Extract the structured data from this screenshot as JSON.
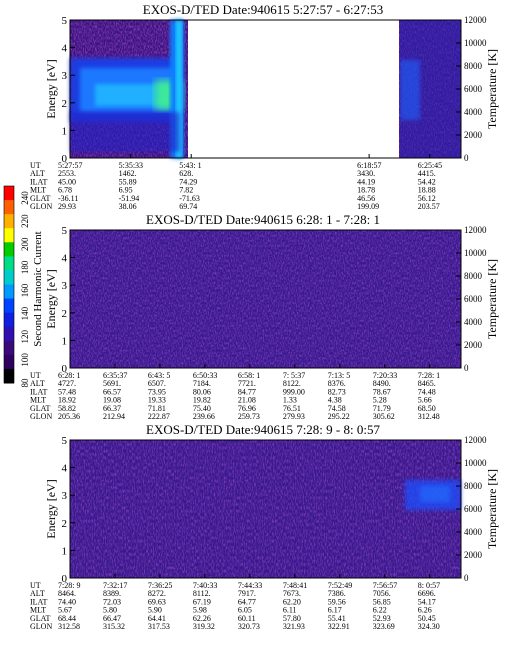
{
  "colorbar": {
    "label": "Second Harmonic Current",
    "ticks": [
      "240",
      "220",
      "200",
      "180",
      "160",
      "140",
      "120",
      "100",
      "80"
    ],
    "colors": [
      "#ff0000",
      "#ff6000",
      "#ffb000",
      "#ffff00",
      "#00cc00",
      "#00dd88",
      "#00cccc",
      "#0099ff",
      "#0044ff",
      "#1020e0",
      "#3010b0",
      "#3a0a7a",
      "#300060",
      "#000000"
    ]
  },
  "chart_data": [
    {
      "type": "heatmap",
      "title": "EXOS-D/TED   Date:940615  5:27:57 - 6:27:53",
      "ylabel": "Energy [eV]",
      "ylabel_right": "Temperature [K]",
      "ylim": [
        0,
        5
      ],
      "ylim_right": [
        0,
        12000
      ],
      "yticks": [
        "0",
        "1",
        "2",
        "3",
        "4",
        "5"
      ],
      "yticks_right": [
        "0",
        "2000",
        "4000",
        "6000",
        "8000",
        "10000",
        "12000"
      ],
      "data_gap": [
        0.455,
        0.865
      ],
      "ephemeris": {
        "row_labels": [
          "UT",
          "ALT",
          "ILAT",
          "MLT",
          "GLAT",
          "GLON"
        ],
        "columns": [
          {
            "pos": 0.0,
            "values": [
              "5:27:57",
              "2553.",
              "45.00",
              "6.78",
              "-36.11",
              "29.93"
            ]
          },
          {
            "pos": 0.155,
            "values": [
              "5:35:33",
              "1462.",
              "55.89",
              "6.95",
              "-51.94",
              "38.06"
            ]
          },
          {
            "pos": 0.31,
            "values": [
              "5:43: 1",
              "628.",
              "74.29",
              "7.82",
              "-71.63",
              "69.74"
            ]
          },
          {
            "pos": 0.765,
            "values": [
              "6:18:57",
              "3430.",
              "44.19",
              "18.78",
              "46.56",
              "199.09"
            ]
          },
          {
            "pos": 0.92,
            "values": [
              "6:25:45",
              "4415.",
              "54.42",
              "18.88",
              "56.12",
              "203.57"
            ]
          }
        ]
      }
    },
    {
      "type": "heatmap",
      "title": "EXOS-D/TED   Date:940615  6:28: 1 - 7:28: 1",
      "ylabel": "Energy [eV]",
      "ylabel_right": "Temperature [K]",
      "ylim": [
        0,
        5
      ],
      "ylim_right": [
        0,
        12000
      ],
      "yticks": [
        "0",
        "1",
        "2",
        "3",
        "4",
        "5"
      ],
      "yticks_right": [
        "0",
        "2000",
        "4000",
        "6000",
        "8000",
        "10000",
        "12000"
      ],
      "ephemeris": {
        "row_labels": [
          "UT",
          "ALT",
          "ILAT",
          "MLT",
          "GLAT",
          "GLON"
        ],
        "columns": [
          {
            "pos": 0.0,
            "values": [
              "6:28: 1",
              "4727.",
              "57.48",
              "18.92",
              "58.82",
              "205.36"
            ]
          },
          {
            "pos": 0.115,
            "values": [
              "6:35:37",
              "5691.",
              "66.57",
              "19.08",
              "66.37",
              "212.94"
            ]
          },
          {
            "pos": 0.23,
            "values": [
              "6:43: 5",
              "6507.",
              "73.95",
              "19.33",
              "71.81",
              "222.87"
            ]
          },
          {
            "pos": 0.345,
            "values": [
              "6:50:33",
              "7184.",
              "80.06",
              "19.82",
              "75.40",
              "239.66"
            ]
          },
          {
            "pos": 0.46,
            "values": [
              "6:58: 1",
              "7721.",
              "84.77",
              "21.08",
              "76.96",
              "259.73"
            ]
          },
          {
            "pos": 0.575,
            "values": [
              "7: 5:37",
              "8122.",
              "999.00",
              "1.33",
              "76.51",
              "279.93"
            ]
          },
          {
            "pos": 0.69,
            "values": [
              "7:13: 5",
              "8376.",
              "82.73",
              "4.38",
              "74.58",
              "295.22"
            ]
          },
          {
            "pos": 0.805,
            "values": [
              "7:20:33",
              "8490.",
              "78.67",
              "5.28",
              "71.79",
              "305.62"
            ]
          },
          {
            "pos": 0.92,
            "values": [
              "7:28: 1",
              "8465.",
              "74.48",
              "5.66",
              "68.50",
              "312.48"
            ]
          }
        ]
      }
    },
    {
      "type": "heatmap",
      "title": "EXOS-D/TED   Date:940615  7:28: 9 - 8: 0:57",
      "ylabel": "Energy [eV]",
      "ylabel_right": "Temperature [K]",
      "ylim": [
        0,
        5
      ],
      "ylim_right": [
        0,
        12000
      ],
      "yticks": [
        "0",
        "1",
        "2",
        "3",
        "4",
        "5"
      ],
      "yticks_right": [
        "0",
        "2000",
        "4000",
        "6000",
        "8000",
        "10000",
        "12000"
      ],
      "ephemeris": {
        "row_labels": [
          "UT",
          "ALT",
          "ILAT",
          "MLT",
          "GLAT",
          "GLON"
        ],
        "columns": [
          {
            "pos": 0.0,
            "values": [
              "7:28: 9",
              "8464.",
              "74.40",
              "5.67",
              "68.44",
              "312.58"
            ]
          },
          {
            "pos": 0.115,
            "values": [
              "7:32:17",
              "8389.",
              "72.03",
              "5.80",
              "66.47",
              "315.32"
            ]
          },
          {
            "pos": 0.23,
            "values": [
              "7:36:25",
              "8272.",
              "69.63",
              "5.90",
              "64.41",
              "317.53"
            ]
          },
          {
            "pos": 0.345,
            "values": [
              "7:40:33",
              "8112.",
              "67.19",
              "5.98",
              "62.26",
              "319.32"
            ]
          },
          {
            "pos": 0.46,
            "values": [
              "7:44:33",
              "7917.",
              "64.77",
              "6.05",
              "60.11",
              "320.73"
            ]
          },
          {
            "pos": 0.575,
            "values": [
              "7:48:41",
              "7673.",
              "62.20",
              "6.11",
              "57.80",
              "321.93"
            ]
          },
          {
            "pos": 0.69,
            "values": [
              "7:52:49",
              "7386.",
              "59.56",
              "6.17",
              "55.41",
              "322.91"
            ]
          },
          {
            "pos": 0.805,
            "values": [
              "7:56:57",
              "7056.",
              "56.85",
              "6.22",
              "52.93",
              "323.69"
            ]
          },
          {
            "pos": 0.92,
            "values": [
              "8: 0:57",
              "6696.",
              "54.17",
              "6.26",
              "50.45",
              "324.30"
            ]
          }
        ]
      }
    }
  ]
}
